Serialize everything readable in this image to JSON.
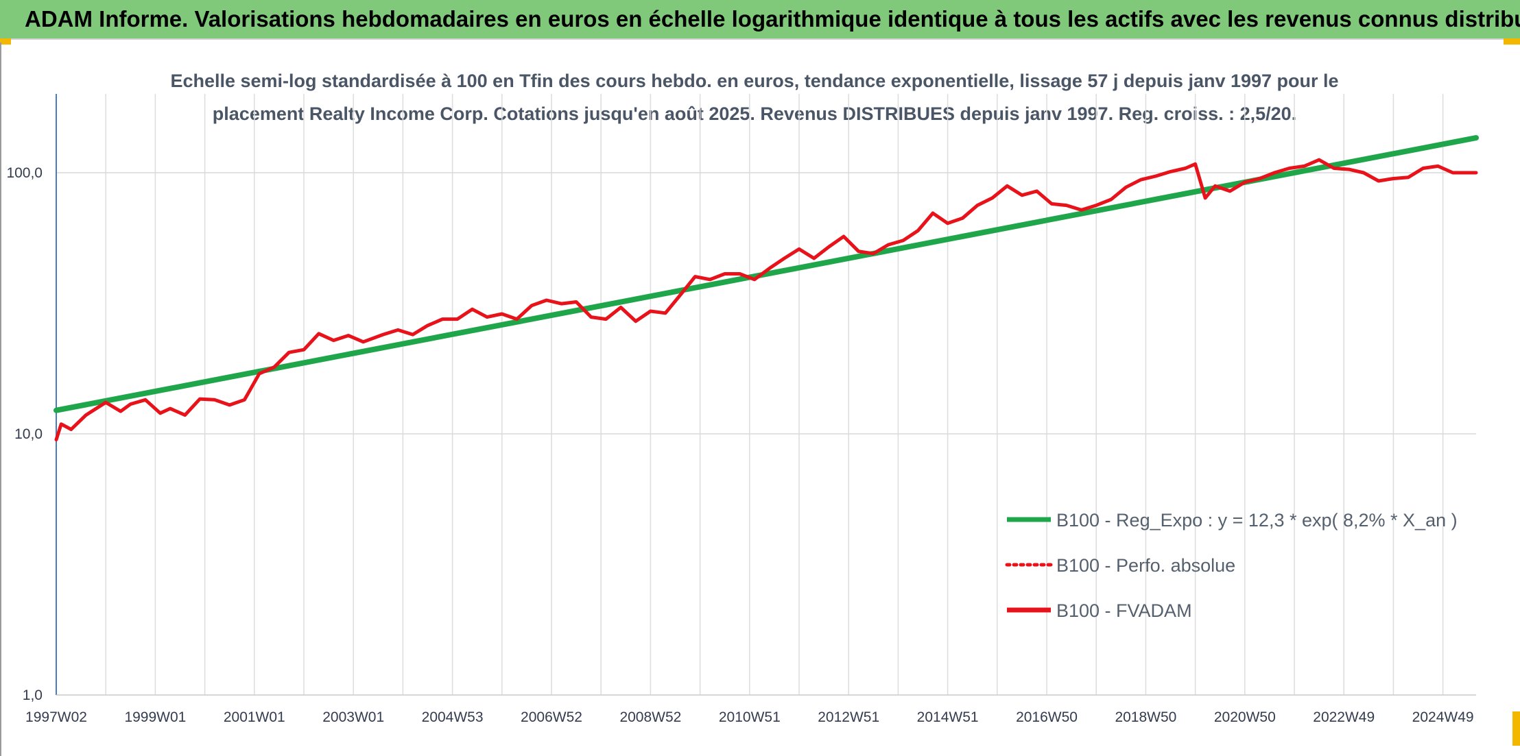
{
  "header": {
    "title": "ADAM Informe. Valorisations hebdomadaires en euros en échelle logarithmique identique à tous les actifs avec les revenus connus distribués",
    "background": "#80c87a"
  },
  "chart_data": {
    "type": "line",
    "title_line1": "Echelle semi-log standardisée à 100 en Tfin des cours hebdo. en euros, tendance exponentielle, lissage 57 j depuis janv 1997 pour le",
    "title_line2": "placement Realty Income Corp. Cotations jusqu'en août 2025. Revenus DISTRIBUES depuis janv 1997. Reg. croiss. : 2,5/20.",
    "y_scale": "log",
    "ylim": [
      1,
      200
    ],
    "y_ticks": [
      {
        "value": 1,
        "label": "1,0"
      },
      {
        "value": 10,
        "label": "10,0"
      },
      {
        "value": 100,
        "label": "100,0"
      }
    ],
    "x_range": [
      1997.0,
      2025.67
    ],
    "x_tick_labels": [
      "1997W02",
      "1999W01",
      "2001W01",
      "2003W01",
      "2004W53",
      "2006W52",
      "2008W52",
      "2010W51",
      "2012W51",
      "2014W51",
      "2016W50",
      "2018W50",
      "2020W50",
      "2022W49",
      "2024W49"
    ],
    "x_tick_positions": [
      1997.0,
      1999.0,
      2001.0,
      2003.0,
      2005.0,
      2007.0,
      2009.0,
      2011.0,
      2013.0,
      2015.0,
      2017.0,
      2019.0,
      2021.0,
      2023.0,
      2025.0
    ],
    "grid": true,
    "legend_position": "bottom-right",
    "series": [
      {
        "name": "B100 - Reg_Expo : y = 12,3 * exp( 8,2% *  X_an )",
        "color": "#1fa64a",
        "style": "solid",
        "x": [
          1997.0,
          2025.67
        ],
        "values": [
          12.3,
          136
        ]
      },
      {
        "name": "B100 - Perfo. absolue",
        "color": "#e8121b",
        "style": "dotted",
        "x": [],
        "values": []
      },
      {
        "name": "B100 - FVADAM",
        "color": "#e8121b",
        "style": "solid",
        "x": [
          1997.0,
          1997.1,
          1997.3,
          1997.6,
          1998.0,
          1998.3,
          1998.5,
          1998.8,
          1999.1,
          1999.3,
          1999.6,
          1999.9,
          2000.2,
          2000.5,
          2000.8,
          2001.1,
          2001.4,
          2001.7,
          2002.0,
          2002.3,
          2002.6,
          2002.9,
          2003.2,
          2003.6,
          2003.9,
          2004.2,
          2004.5,
          2004.8,
          2005.1,
          2005.4,
          2005.7,
          2006.0,
          2006.3,
          2006.6,
          2006.9,
          2007.2,
          2007.5,
          2007.8,
          2008.1,
          2008.4,
          2008.7,
          2009.0,
          2009.3,
          2009.6,
          2009.9,
          2010.2,
          2010.5,
          2010.8,
          2011.1,
          2011.4,
          2011.7,
          2012.0,
          2012.3,
          2012.6,
          2012.9,
          2013.2,
          2013.5,
          2013.8,
          2014.1,
          2014.4,
          2014.7,
          2015.0,
          2015.3,
          2015.6,
          2015.9,
          2016.2,
          2016.5,
          2016.8,
          2017.1,
          2017.4,
          2017.7,
          2018.0,
          2018.3,
          2018.6,
          2018.9,
          2019.2,
          2019.5,
          2019.8,
          2020.0,
          2020.2,
          2020.4,
          2020.7,
          2021.0,
          2021.3,
          2021.6,
          2021.9,
          2022.2,
          2022.5,
          2022.8,
          2023.1,
          2023.4,
          2023.7,
          2024.0,
          2024.3,
          2024.6,
          2024.9,
          2025.2,
          2025.5,
          2025.67
        ],
        "values": [
          9.5,
          10.9,
          10.4,
          11.8,
          13.2,
          12.2,
          13.0,
          13.5,
          12.0,
          12.5,
          11.8,
          13.6,
          13.5,
          12.9,
          13.5,
          17.0,
          18.0,
          20.5,
          21.0,
          24.2,
          22.8,
          23.8,
          22.5,
          24.0,
          25.0,
          24.0,
          26.0,
          27.5,
          27.5,
          30.0,
          28.0,
          28.8,
          27.5,
          31.0,
          32.5,
          31.5,
          32.0,
          28.0,
          27.5,
          30.5,
          27.0,
          29.5,
          29.0,
          34.0,
          40.0,
          39.0,
          41.0,
          41.0,
          39.0,
          43.0,
          47.0,
          51.0,
          47.0,
          52.0,
          57.0,
          50.0,
          49.0,
          53.0,
          55.0,
          60.0,
          70.0,
          64.0,
          67.0,
          75.0,
          80.0,
          89.0,
          82.0,
          85.0,
          76.0,
          75.0,
          72.0,
          75.0,
          79.0,
          88.0,
          94.0,
          97.0,
          101.0,
          104.0,
          108.0,
          80.0,
          89.0,
          85.0,
          92.0,
          95.0,
          100.0,
          104.0,
          106.0,
          112.0,
          104.0,
          103.0,
          100.0,
          93.0,
          95.0,
          96.0,
          104.0,
          106.0,
          100.0,
          100.0,
          100.0
        ]
      }
    ]
  }
}
